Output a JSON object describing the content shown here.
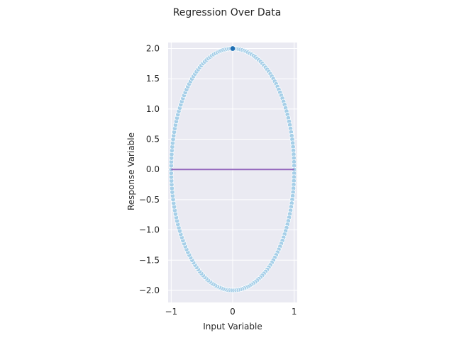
{
  "chart_data": {
    "type": "scatter",
    "title": "Regression Over Data",
    "xlabel": "Input Variable",
    "ylabel": "Response Variable",
    "xlim": [
      -1.05,
      1.05
    ],
    "ylim": [
      -2.2,
      2.1
    ],
    "xticks": [
      -1,
      0,
      1
    ],
    "xtick_labels": [
      "−1",
      "0",
      "1"
    ],
    "yticks": [
      -2.0,
      -1.5,
      -1.0,
      -0.5,
      0.0,
      0.5,
      1.0,
      1.5,
      2.0
    ],
    "ytick_labels": [
      "−2.0",
      "−1.5",
      "−1.0",
      "−0.5",
      "0.0",
      "0.5",
      "1.0",
      "1.5",
      "2.0"
    ],
    "grid": true,
    "scatter_series": {
      "shape": "ellipse",
      "x_semi_axis": 1.0,
      "y_semi_axis": 2.0,
      "num_points": 200,
      "color": "#a6cfe8",
      "edge_color": "#ffffff"
    },
    "highlight_point": {
      "x": 0.0,
      "y": 2.0,
      "color": "#1f6fb4"
    },
    "regression_line": {
      "x": [
        -1.0,
        1.0
      ],
      "y": [
        0.0,
        0.0
      ],
      "color": "#9467bd"
    },
    "colors": {
      "plot_background": "#eaeaf2",
      "grid": "#ffffff"
    }
  }
}
